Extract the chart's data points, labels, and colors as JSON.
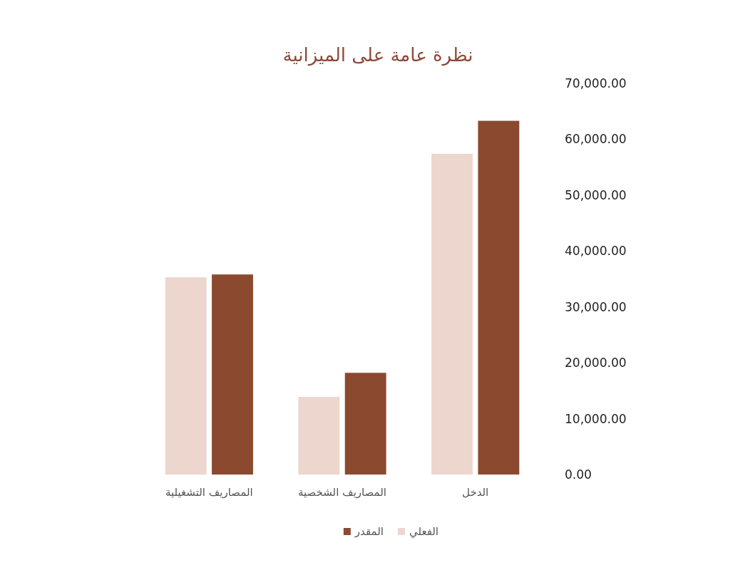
{
  "chart_data": {
    "type": "bar",
    "title": "نظرة عامة على الميزانية",
    "categories": [
      "المصاريف التشغيلية",
      "المصاريف الشخصية",
      "الدخل"
    ],
    "series": [
      {
        "name": "الفعلي",
        "color": "#edd6cd",
        "values": [
          35300,
          13900,
          57400
        ]
      },
      {
        "name": "المقدر",
        "color": "#8b4a30",
        "values": [
          35800,
          18200,
          63300
        ]
      }
    ],
    "ylim": [
      0,
      70000
    ],
    "yticks": [
      {
        "value": 0,
        "label": "0.00"
      },
      {
        "value": 10000,
        "label": "10,000.00"
      },
      {
        "value": 20000,
        "label": "20,000.00"
      },
      {
        "value": 30000,
        "label": "30,000.00"
      },
      {
        "value": 40000,
        "label": "40,000.00"
      },
      {
        "value": 50000,
        "label": "50,000.00"
      },
      {
        "value": 60000,
        "label": "60,000.00"
      },
      {
        "value": 70000,
        "label": "70,000.00"
      }
    ],
    "legend": "bottom",
    "grid": false
  }
}
